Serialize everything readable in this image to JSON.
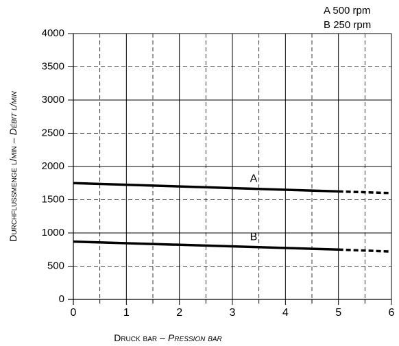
{
  "chart_data": {
    "type": "line",
    "xlabel_main": "Druck bar –",
    "xlabel_alt": "Pression bar",
    "ylabel_main": "Durchflußmenge l/min –",
    "ylabel_alt": "Débit l/min",
    "x": [
      0,
      5,
      6
    ],
    "series": [
      {
        "name": "A",
        "description": "500 rpm",
        "color": "#000000",
        "values": [
          1750,
          1625,
          1600
        ]
      },
      {
        "name": "B",
        "description": "250 rpm",
        "color": "#000000",
        "values": [
          870,
          750,
          720
        ]
      }
    ],
    "xlim": [
      0,
      6
    ],
    "xticks": [
      0,
      1,
      2,
      3,
      4,
      5,
      6
    ],
    "xminor": [
      0.5,
      1.5,
      2.5,
      3.5,
      4.5,
      5.5
    ],
    "ylim": [
      0,
      4000
    ],
    "yticks": [
      0,
      500,
      1000,
      1500,
      2000,
      2500,
      3000,
      3500,
      4000
    ],
    "grid": true
  }
}
